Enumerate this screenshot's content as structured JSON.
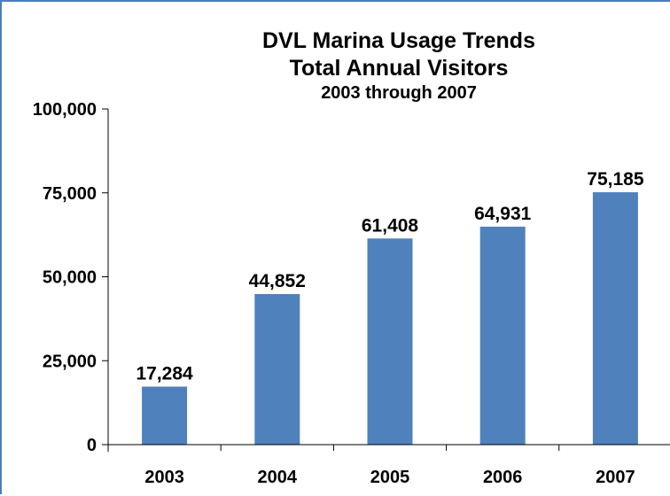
{
  "colors": {
    "bar": "#4f81bd",
    "border": "#4a7ebb",
    "axis": "#000000"
  },
  "chart_data": {
    "type": "bar",
    "title": "DVL Marina Usage Trends",
    "title_line2": "Total Annual Visitors",
    "subtitle": "2003 through 2007",
    "xlabel": "",
    "ylabel": "",
    "categories": [
      "2003",
      "2004",
      "2005",
      "2006",
      "2007"
    ],
    "values": [
      17284,
      44852,
      61408,
      64931,
      75185
    ],
    "value_labels": [
      "17,284",
      "44,852",
      "61,408",
      "64,931",
      "75,185"
    ],
    "ylim": [
      0,
      100000
    ],
    "yticks": [
      0,
      25000,
      50000,
      75000,
      100000
    ],
    "ytick_labels": [
      "0",
      "25,000",
      "50,000",
      "75,000",
      "100,000"
    ],
    "grid": false,
    "legend": "none"
  }
}
